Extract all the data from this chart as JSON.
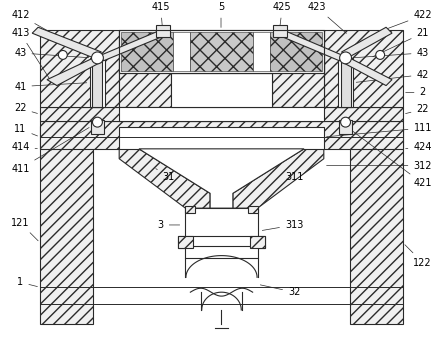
{
  "bg_color": "#ffffff",
  "lc": "#2a2a2a",
  "lw": 0.8,
  "figsize": [
    4.43,
    3.43
  ],
  "dpi": 100,
  "fs": 7.0
}
